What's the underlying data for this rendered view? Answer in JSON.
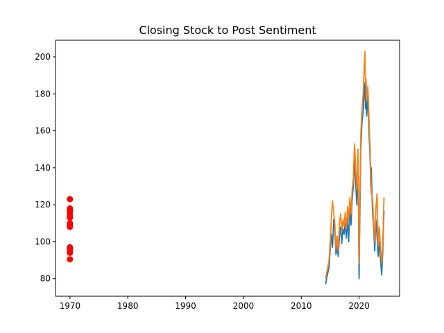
{
  "chart_data": {
    "type": "line",
    "title": "Closing Stock to Post Sentiment",
    "xlabel": "",
    "ylabel": "",
    "xlim": [
      1967.5,
      2027.0
    ],
    "ylim": [
      70.5,
      209.0
    ],
    "xticks": [
      1970,
      1980,
      1990,
      2000,
      2010,
      2020
    ],
    "yticks": [
      80,
      100,
      120,
      140,
      160,
      180,
      200
    ],
    "grid": false,
    "legend": "none",
    "series": [
      {
        "kind": "line",
        "color": "#1f77b4",
        "x": [
          2014.2,
          2014.5,
          2014.8,
          2015.0,
          2015.2,
          2015.4,
          2015.6,
          2015.8,
          2016.0,
          2016.2,
          2016.4,
          2016.6,
          2016.8,
          2017.0,
          2017.2,
          2017.4,
          2017.6,
          2017.8,
          2018.0,
          2018.2,
          2018.4,
          2018.6,
          2018.8,
          2019.0,
          2019.2,
          2019.4,
          2019.6,
          2019.8,
          2020.0,
          2020.1,
          2020.2,
          2020.3,
          2020.5,
          2020.7,
          2020.9,
          2021.0,
          2021.1,
          2021.2,
          2021.3,
          2021.5,
          2021.7,
          2021.9,
          2022.0,
          2022.1,
          2022.3,
          2022.5,
          2022.7,
          2022.9,
          2023.1,
          2023.3,
          2023.5,
          2023.7,
          2023.9,
          2024.1,
          2024.3
        ],
        "y": [
          77,
          82,
          86,
          96,
          104,
          97,
          112,
          106,
          93,
          98,
          92,
          103,
          108,
          99,
          107,
          104,
          110,
          102,
          113,
          100,
          118,
          109,
          123,
          130,
          144,
          132,
          120,
          146,
          80,
          108,
          130,
          150,
          165,
          170,
          182,
          186,
          172,
          176,
          168,
          178,
          160,
          145,
          130,
          140,
          118,
          108,
          95,
          112,
          103,
          92,
          100,
          90,
          82,
          95,
          117
        ]
      },
      {
        "kind": "line",
        "color": "#ff7f0e",
        "x": [
          2014.2,
          2014.5,
          2014.8,
          2015.0,
          2015.2,
          2015.4,
          2015.6,
          2015.8,
          2016.0,
          2016.2,
          2016.4,
          2016.6,
          2016.8,
          2017.0,
          2017.2,
          2017.4,
          2017.6,
          2017.8,
          2018.0,
          2018.2,
          2018.4,
          2018.6,
          2018.8,
          2019.0,
          2019.2,
          2019.4,
          2019.6,
          2019.8,
          2020.0,
          2020.1,
          2020.2,
          2020.3,
          2020.5,
          2020.7,
          2020.9,
          2021.0,
          2021.1,
          2021.2,
          2021.3,
          2021.5,
          2021.7,
          2021.9,
          2022.0,
          2022.1,
          2022.3,
          2022.5,
          2022.7,
          2022.9,
          2023.1,
          2023.3,
          2023.5,
          2023.7,
          2023.9,
          2024.1,
          2024.3
        ],
        "y": [
          80,
          85,
          90,
          100,
          112,
          122,
          116,
          110,
          96,
          103,
          95,
          110,
          115,
          106,
          112,
          108,
          116,
          107,
          119,
          112,
          124,
          115,
          128,
          134,
          153,
          140,
          128,
          150,
          88,
          120,
          138,
          158,
          172,
          180,
          196,
          203,
          185,
          188,
          176,
          184,
          168,
          150,
          138,
          126,
          124,
          112,
          100,
          118,
          126,
          98,
          108,
          96,
          88,
          100,
          124
        ]
      },
      {
        "kind": "scatter",
        "color": "#ff0000",
        "x": [
          1970,
          1970,
          1970,
          1970,
          1970,
          1970,
          1970,
          1970,
          1970,
          1970,
          1970,
          1970,
          1970,
          1970
        ],
        "y": [
          123,
          118,
          117,
          116,
          114,
          113,
          110,
          109,
          108,
          97,
          96,
          95,
          94,
          90.5
        ]
      }
    ]
  }
}
